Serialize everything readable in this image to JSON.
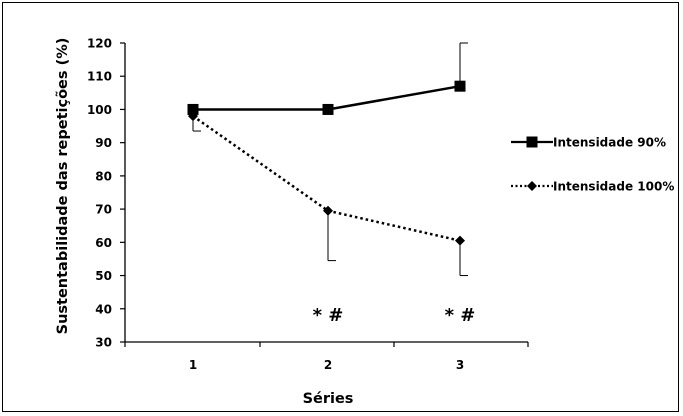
{
  "chart_data": {
    "type": "line",
    "title": "",
    "xlabel": "Séries",
    "ylabel": "Sustentabilidade das repetições (%)",
    "x": [
      "1",
      "2",
      "3"
    ],
    "yticks": [
      "30",
      "40",
      "50",
      "60",
      "70",
      "80",
      "90",
      "100",
      "110",
      "120"
    ],
    "ylim": [
      30,
      120
    ],
    "grid": false,
    "legend_position": "right",
    "series": [
      {
        "name": "Intensidade 90%",
        "values": [
          100,
          100,
          107
        ],
        "error_upper": [
          0,
          0,
          13
        ],
        "error_lower": [
          0,
          0,
          0
        ],
        "marker": "square",
        "line_style": "solid",
        "color": "#000000"
      },
      {
        "name": "Intensidade 100%",
        "values": [
          98,
          69.5,
          60.5
        ],
        "error_upper": [
          0,
          0,
          0
        ],
        "error_lower": [
          4.5,
          15,
          10.5
        ],
        "marker": "diamond",
        "line_style": "dotted",
        "color": "#000000"
      }
    ],
    "annotations": [
      {
        "text": "*  #",
        "x": "2",
        "y": 40
      },
      {
        "text": "*  #",
        "x": "3",
        "y": 40
      }
    ]
  }
}
